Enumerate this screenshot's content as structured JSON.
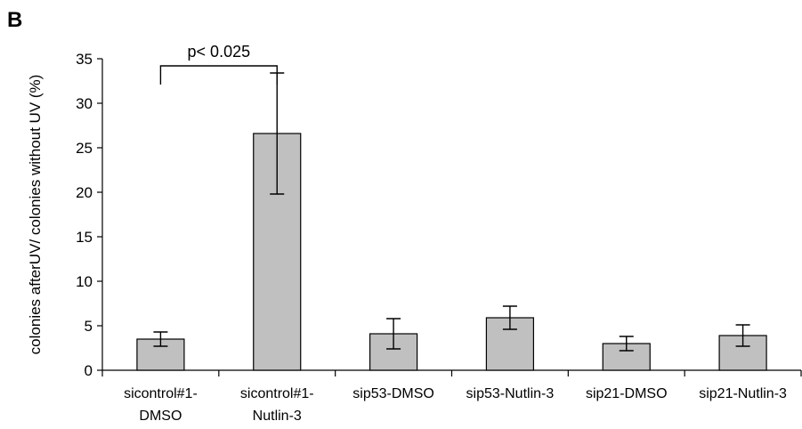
{
  "panel_label": "B",
  "chart_data": {
    "type": "bar",
    "categories": [
      [
        "sicontrol#1-",
        "DMSO"
      ],
      [
        "sicontrol#1-",
        "Nutlin-3"
      ],
      [
        "sip53-DMSO"
      ],
      [
        "sip53-Nutlin-3"
      ],
      [
        "sip21-DMSO"
      ],
      [
        "sip21-Nutlin-3"
      ]
    ],
    "values": [
      3.5,
      26.6,
      4.1,
      5.9,
      3.0,
      3.9
    ],
    "errors": [
      0.8,
      6.8,
      1.7,
      1.3,
      0.8,
      1.2
    ],
    "ylabel": "colonies afterUV/ colonies without UV (%)",
    "ylim": [
      0,
      35
    ],
    "yticks": [
      0,
      5,
      10,
      15,
      20,
      25,
      30,
      35
    ],
    "bar_color": "#c0c0c0",
    "grid": false,
    "annotations": [
      {
        "text": "p< 0.025",
        "from_category": 0,
        "to_category": 1,
        "y": 34.2
      }
    ]
  }
}
